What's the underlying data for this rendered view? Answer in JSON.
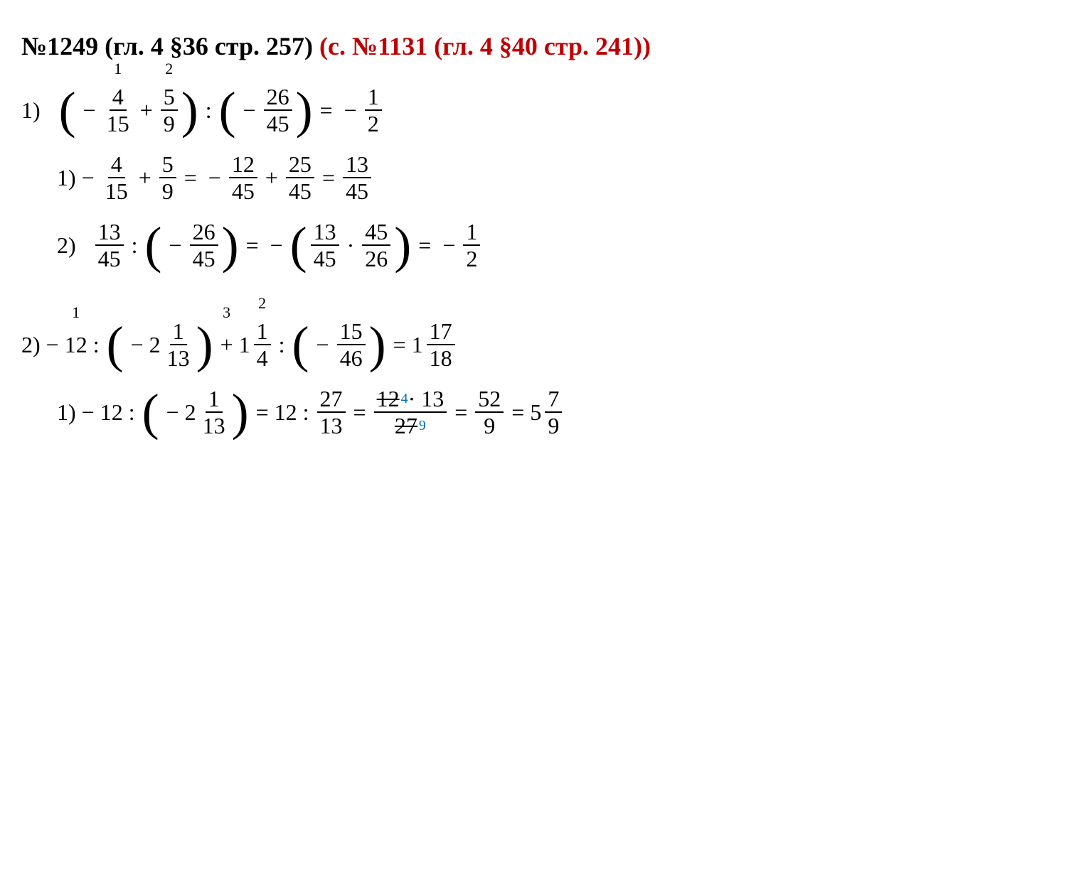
{
  "heading": {
    "black": "№1249 (гл. 4 §36 стр. 257)",
    "red": "(с. №1131 (гл. 4 §40 стр. 241))"
  },
  "colors": {
    "black": "#000000",
    "red": "#c00000",
    "blue": "#0070c0",
    "background": "#ffffff"
  },
  "typography": {
    "body_fontsize": 32,
    "heading_fontsize": 36,
    "step_mark_fontsize": 22,
    "paren_fontsize": 72,
    "font_family": "Times New Roman"
  },
  "problem1": {
    "step_marks": [
      "1",
      "2"
    ],
    "main": {
      "label": "1)",
      "f1": {
        "num": "4",
        "den": "15"
      },
      "f2": {
        "num": "5",
        "den": "9"
      },
      "f3": {
        "num": "26",
        "den": "45"
      },
      "result": {
        "num": "1",
        "den": "2"
      }
    },
    "sub1": {
      "label": "1)",
      "f1": {
        "num": "4",
        "den": "15"
      },
      "f2": {
        "num": "5",
        "den": "9"
      },
      "f3": {
        "num": "12",
        "den": "45"
      },
      "f4": {
        "num": "25",
        "den": "45"
      },
      "f5": {
        "num": "13",
        "den": "45"
      }
    },
    "sub2": {
      "label": "2)",
      "f1": {
        "num": "13",
        "den": "45"
      },
      "f2": {
        "num": "26",
        "den": "45"
      },
      "f3a": {
        "num": "13",
        "den": "45"
      },
      "f3b": {
        "num": "45",
        "den": "26"
      },
      "result": {
        "num": "1",
        "den": "2"
      }
    }
  },
  "problem2": {
    "step_marks": [
      "1",
      "3",
      "2"
    ],
    "main": {
      "label": "2)",
      "t1": "12",
      "mixed1": {
        "whole": "2",
        "num": "1",
        "den": "13"
      },
      "mixed2": {
        "whole": "1",
        "num": "1",
        "den": "4"
      },
      "f3": {
        "num": "15",
        "den": "46"
      },
      "result": {
        "whole": "1",
        "num": "17",
        "den": "18"
      }
    },
    "sub1": {
      "label": "1)",
      "t1": "12",
      "mixed1": {
        "whole": "2",
        "num": "1",
        "den": "13"
      },
      "t2": "12",
      "f2": {
        "num": "27",
        "den": "13"
      },
      "strike_num": "12",
      "strike_sup": "4",
      "num_tail": " · 13",
      "strike_den": "27",
      "strike_sub": "9",
      "f4": {
        "num": "52",
        "den": "9"
      },
      "result": {
        "whole": "5",
        "num": "7",
        "den": "9"
      }
    }
  }
}
